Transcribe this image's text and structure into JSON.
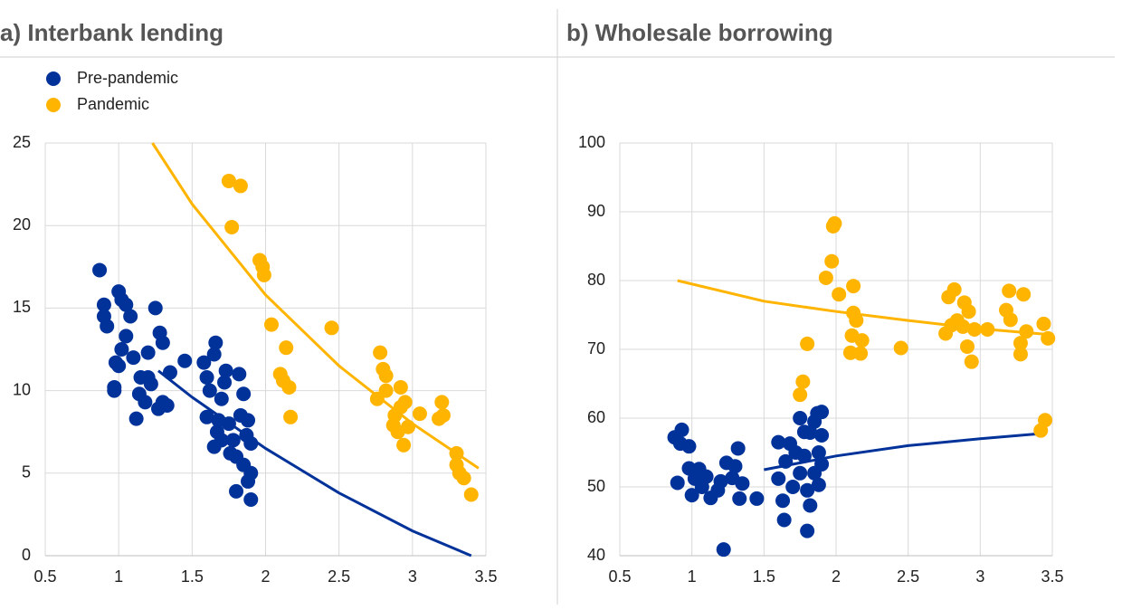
{
  "chart_data": [
    {
      "type": "scatter",
      "title": "a) Interbank lending",
      "legend": "upper left",
      "grid": true,
      "xlim": [
        0.5,
        3.5
      ],
      "xticks": [
        0.5,
        1,
        1.5,
        2,
        2.5,
        3,
        3.5
      ],
      "ylim": [
        0,
        25
      ],
      "yticks": [
        0,
        5,
        10,
        15,
        20,
        25
      ],
      "series": [
        {
          "name": "Pre-pandemic",
          "color": "#003299",
          "x": [
            0.87,
            0.9,
            0.9,
            0.92,
            0.97,
            0.97,
            0.98,
            1.0,
            1.0,
            1.02,
            1.02,
            1.05,
            1.05,
            1.08,
            1.1,
            1.12,
            1.14,
            1.15,
            1.18,
            1.2,
            1.2,
            1.22,
            1.25,
            1.27,
            1.28,
            1.3,
            1.3,
            1.33,
            1.35,
            1.45,
            1.58,
            1.6,
            1.6,
            1.62,
            1.65,
            1.66,
            1.65,
            1.67,
            1.7,
            1.72,
            1.73,
            1.75,
            1.78,
            1.8,
            1.8,
            1.82,
            1.83,
            1.85,
            1.85,
            1.87,
            1.88,
            1.9,
            1.9,
            1.9,
            1.88,
            1.76,
            1.7,
            1.68
          ],
          "values": [
            17.3,
            15.2,
            14.5,
            13.9,
            10.2,
            10,
            11.7,
            11.5,
            16,
            15.5,
            12.5,
            13.3,
            15.2,
            14.5,
            12,
            8.3,
            9.8,
            10.8,
            9.3,
            12.3,
            10.8,
            10.4,
            15,
            8.9,
            13.5,
            12.9,
            9.3,
            9.1,
            11.1,
            11.8,
            11.7,
            10.8,
            8.4,
            10,
            12.2,
            12.9,
            6.6,
            7.5,
            9.5,
            10.5,
            11.2,
            8,
            7,
            6,
            3.9,
            11,
            8.5,
            9.8,
            5.5,
            7.3,
            4.5,
            3.4,
            5,
            6.8,
            8.2,
            6.2,
            7,
            8.2
          ]
        },
        {
          "name": "Pandemic",
          "color": "#ffb400",
          "x": [
            1.75,
            1.77,
            1.83,
            1.96,
            1.98,
            1.99,
            2.04,
            2.1,
            2.12,
            2.14,
            2.16,
            2.17,
            2.45,
            2.76,
            2.78,
            2.8,
            2.82,
            2.82,
            2.87,
            2.88,
            2.9,
            2.92,
            2.92,
            2.94,
            2.95,
            2.97,
            3.05,
            3.18,
            3.2,
            3.21,
            3.3,
            3.3,
            3.32,
            3.35,
            3.4
          ],
          "values": [
            22.7,
            19.9,
            22.4,
            17.9,
            17.5,
            17,
            14,
            11,
            10.6,
            12.6,
            10.2,
            8.4,
            13.8,
            9.5,
            12.3,
            11.3,
            10.9,
            10,
            7.9,
            8.5,
            7.5,
            10.2,
            9,
            6.7,
            9.3,
            7.8,
            8.6,
            8.3,
            9.3,
            8.5,
            6.2,
            5.5,
            5,
            4.7,
            3.7
          ]
        },
        {
          "type": "line",
          "color": "#003299",
          "x": [
            1.27,
            1.5,
            2,
            2.5,
            3,
            3.4
          ],
          "values": [
            11.2,
            9.6,
            6.5,
            3.8,
            1.5,
            0
          ]
        },
        {
          "type": "line",
          "color": "#ffb400",
          "x": [
            1.23,
            1.5,
            2,
            2.5,
            3,
            3.45
          ],
          "values": [
            25,
            21.3,
            15.8,
            11.5,
            8,
            5.3
          ]
        }
      ]
    },
    {
      "type": "scatter",
      "title": "b) Wholesale borrowing",
      "grid": true,
      "xlim": [
        0.5,
        3.5
      ],
      "xticks": [
        0.5,
        1,
        1.5,
        2,
        2.5,
        3,
        3.5
      ],
      "ylim": [
        40,
        100
      ],
      "yticks": [
        40,
        50,
        60,
        70,
        80,
        90,
        100
      ],
      "series": [
        {
          "color": "#003299",
          "x": [
            0.88,
            0.9,
            0.92,
            0.93,
            0.98,
            0.98,
            1.0,
            1.02,
            1.05,
            1.07,
            1.1,
            1.13,
            1.18,
            1.2,
            1.22,
            1.24,
            1.28,
            1.3,
            1.32,
            1.33,
            1.35,
            1.45,
            1.6,
            1.6,
            1.63,
            1.64,
            1.65,
            1.68,
            1.7,
            1.72,
            1.75,
            1.75,
            1.78,
            1.8,
            1.8,
            1.82,
            1.82,
            1.85,
            1.85,
            1.87,
            1.88,
            1.88,
            1.9,
            1.9,
            1.9,
            1.78
          ],
          "values": [
            57.2,
            50.6,
            56.3,
            58.3,
            55.9,
            52.7,
            48.8,
            51.2,
            52.6,
            50,
            51.5,
            48.4,
            49.5,
            50.8,
            40.9,
            53.5,
            51.3,
            53,
            55.6,
            48.3,
            50.5,
            48.3,
            56.5,
            51.2,
            48,
            45.2,
            53.7,
            56.3,
            50,
            55,
            60,
            52,
            54.5,
            43.6,
            49.5,
            57.9,
            47.3,
            59.5,
            52,
            60.7,
            55,
            50.3,
            60.9,
            57.5,
            53.3,
            58
          ]
        },
        {
          "color": "#ffb400",
          "x": [
            1.75,
            1.77,
            1.8,
            1.93,
            1.97,
            1.98,
            1.99,
            2.02,
            2.1,
            2.11,
            2.12,
            2.12,
            2.14,
            2.17,
            2.18,
            2.45,
            2.76,
            2.78,
            2.8,
            2.82,
            2.84,
            2.88,
            2.89,
            2.91,
            2.92,
            2.94,
            2.96,
            3.05,
            3.18,
            3.2,
            3.21,
            3.28,
            3.28,
            3.3,
            3.32,
            3.42,
            3.45,
            3.47,
            3.44
          ],
          "values": [
            63.4,
            65.3,
            70.8,
            80.4,
            82.8,
            87.9,
            88.3,
            78,
            69.5,
            72,
            79.2,
            75.3,
            74.2,
            69.4,
            71.3,
            70.2,
            72.3,
            77.6,
            73.5,
            78.7,
            74.2,
            73.3,
            76.8,
            70.4,
            75.5,
            68.2,
            72.9,
            72.9,
            75.7,
            78.5,
            74.3,
            69.3,
            70.9,
            78,
            72.6,
            58.2,
            59.7,
            71.6,
            73.7
          ]
        },
        {
          "type": "line",
          "color": "#003299",
          "x": [
            1.5,
            2,
            2.5,
            3,
            3.45
          ],
          "values": [
            52.5,
            54.5,
            56,
            57,
            57.8
          ]
        },
        {
          "type": "line",
          "color": "#ffb400",
          "x": [
            0.9,
            1.5,
            2,
            2.5,
            3,
            3.45
          ],
          "values": [
            80,
            77,
            75.5,
            74.2,
            73,
            72.2
          ]
        }
      ]
    }
  ]
}
